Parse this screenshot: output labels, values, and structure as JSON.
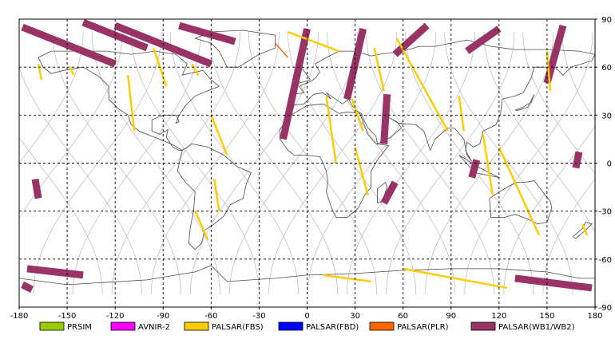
{
  "map": {
    "x_ticks": [
      "-180",
      "-150",
      "-120",
      "-90",
      "-60",
      "-30",
      "0",
      "30",
      "60",
      "90",
      "120",
      "150",
      "180"
    ],
    "y_ticks": [
      "90",
      "60",
      "30",
      "0",
      "-30",
      "-60",
      "-90"
    ],
    "lon_range": [
      -180,
      180
    ],
    "lat_range": [
      -90,
      90
    ],
    "grid": "dashed",
    "colors": {
      "land_outline": "#4a4a4a",
      "orbit_track": "#c0c0c0",
      "grid": "#000000"
    }
  },
  "legend": [
    {
      "label": "PRSIM",
      "color": "#99cc00"
    },
    {
      "label": "AVNIR-2",
      "color": "#ff00ff"
    },
    {
      "label": "PALSAR(FBS)",
      "color": "#ffcc00"
    },
    {
      "label": "PALSAR(FBD)",
      "color": "#0000ff"
    },
    {
      "label": "PALSAR(PLR)",
      "color": "#ff6600"
    },
    {
      "label": "PALSAR(WB1/WB2)",
      "color": "#993366"
    }
  ],
  "observations": {
    "wb_swaths": [
      {
        "lon": [
          -178,
          -120
        ],
        "lat": [
          85,
          62
        ]
      },
      {
        "lon": [
          -140,
          -100
        ],
        "lat": [
          88,
          72
        ]
      },
      {
        "lon": [
          -120,
          -60
        ],
        "lat": [
          86,
          62
        ]
      },
      {
        "lon": [
          -80,
          -45
        ],
        "lat": [
          86,
          76
        ]
      },
      {
        "lon": [
          0,
          -15
        ],
        "lat": [
          84,
          15
        ]
      },
      {
        "lon": [
          35,
          25
        ],
        "lat": [
          84,
          40
        ]
      },
      {
        "lon": [
          75,
          55
        ],
        "lat": [
          86,
          68
        ]
      },
      {
        "lon": [
          120,
          100
        ],
        "lat": [
          84,
          70
        ]
      },
      {
        "lon": [
          160,
          150
        ],
        "lat": [
          86,
          50
        ]
      },
      {
        "lon": [
          50,
          48
        ],
        "lat": [
          43,
          12
        ]
      },
      {
        "lon": [
          55,
          48
        ],
        "lat": [
          -12,
          -25
        ]
      },
      {
        "lon": [
          106,
          103
        ],
        "lat": [
          2,
          -9
        ]
      },
      {
        "lon": [
          170,
          168
        ],
        "lat": [
          7,
          -3
        ]
      },
      {
        "lon": [
          -170,
          -168
        ],
        "lat": [
          -10,
          -22
        ]
      },
      {
        "lon": [
          -175,
          -140
        ],
        "lat": [
          -66,
          -70
        ]
      },
      {
        "lon": [
          130,
          178
        ],
        "lat": [
          -72,
          -78
        ]
      },
      {
        "lon": [
          -178,
          -172
        ],
        "lat": [
          -76,
          -79
        ]
      }
    ],
    "fbs_strips": [
      {
        "lon": [
          -168,
          -166
        ],
        "lat": [
          62,
          52
        ]
      },
      {
        "lon": [
          -148,
          -146
        ],
        "lat": [
          60,
          55
        ]
      },
      {
        "lon": [
          -112,
          -108
        ],
        "lat": [
          55,
          20
        ]
      },
      {
        "lon": [
          -96,
          -88
        ],
        "lat": [
          72,
          48
        ]
      },
      {
        "lon": [
          -72,
          -68
        ],
        "lat": [
          62,
          55
        ]
      },
      {
        "lon": [
          -60,
          -50
        ],
        "lat": [
          30,
          5
        ]
      },
      {
        "lon": [
          -58,
          -55
        ],
        "lat": [
          -10,
          -30
        ]
      },
      {
        "lon": [
          -70,
          -62
        ],
        "lat": [
          -30,
          -48
        ]
      },
      {
        "lon": [
          -12,
          20
        ],
        "lat": [
          82,
          70
        ]
      },
      {
        "lon": [
          12,
          18
        ],
        "lat": [
          42,
          0
        ]
      },
      {
        "lon": [
          28,
          35
        ],
        "lat": [
          40,
          20
        ]
      },
      {
        "lon": [
          42,
          48
        ],
        "lat": [
          72,
          45
        ]
      },
      {
        "lon": [
          30,
          38
        ],
        "lat": [
          10,
          -20
        ]
      },
      {
        "lon": [
          56,
          88
        ],
        "lat": [
          78,
          20
        ]
      },
      {
        "lon": [
          95,
          98
        ],
        "lat": [
          42,
          20
        ]
      },
      {
        "lon": [
          110,
          116
        ],
        "lat": [
          18,
          -20
        ]
      },
      {
        "lon": [
          120,
          145
        ],
        "lat": [
          10,
          -45
        ]
      },
      {
        "lon": [
          150,
          152
        ],
        "lat": [
          70,
          45
        ]
      },
      {
        "lon": [
          172,
          175
        ],
        "lat": [
          -38,
          -45
        ]
      },
      {
        "lon": [
          10,
          40
        ],
        "lat": [
          -70,
          -74
        ]
      },
      {
        "lon": [
          60,
          125
        ],
        "lat": [
          -66,
          -78
        ]
      }
    ],
    "plr_strips": [
      {
        "lon": [
          -20,
          -12
        ],
        "lat": [
          75,
          66
        ]
      }
    ]
  }
}
